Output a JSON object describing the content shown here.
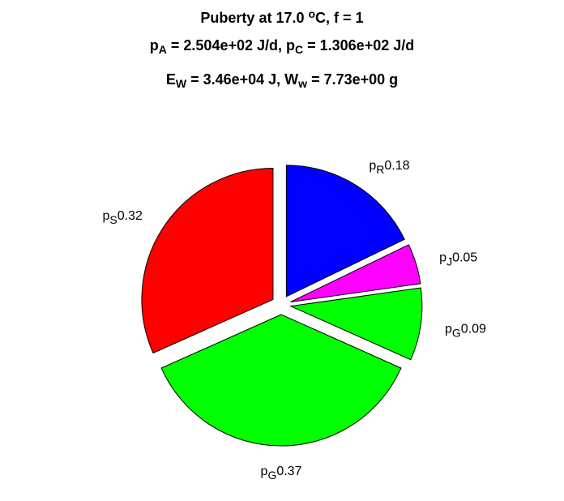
{
  "chart_data": {
    "type": "pie",
    "title_lines": [
      [
        {
          "text": "Puberty at 17.0 "
        },
        {
          "text": "o",
          "shift": "super"
        },
        {
          "text": "C, f = 1"
        }
      ],
      [
        {
          "text": "p"
        },
        {
          "text": "A",
          "shift": "sub"
        },
        {
          "text": " = 2.504e+02 J/d,  p"
        },
        {
          "text": "C",
          "shift": "sub"
        },
        {
          "text": " = 1.306e+02 J/d"
        }
      ],
      [
        {
          "text": "E"
        },
        {
          "text": "W",
          "shift": "sub"
        },
        {
          "text": " = 3.46e+04 J, W"
        },
        {
          "text": "w",
          "shift": "sub"
        },
        {
          "text": " = 7.73e+00 g"
        }
      ]
    ],
    "categories": [
      {
        "base": "p",
        "sub": "S"
      },
      {
        "base": "p",
        "sub": "G"
      },
      {
        "base": "p",
        "sub": "G"
      },
      {
        "base": "p",
        "sub": "J"
      },
      {
        "base": "p",
        "sub": "R"
      }
    ],
    "values": [
      0.32,
      0.37,
      0.09,
      0.05,
      0.18
    ],
    "colors": [
      "#ff0000",
      "#00ff00",
      "#00ff00",
      "#ff00ff",
      "#0000ff"
    ],
    "exploded": true
  }
}
